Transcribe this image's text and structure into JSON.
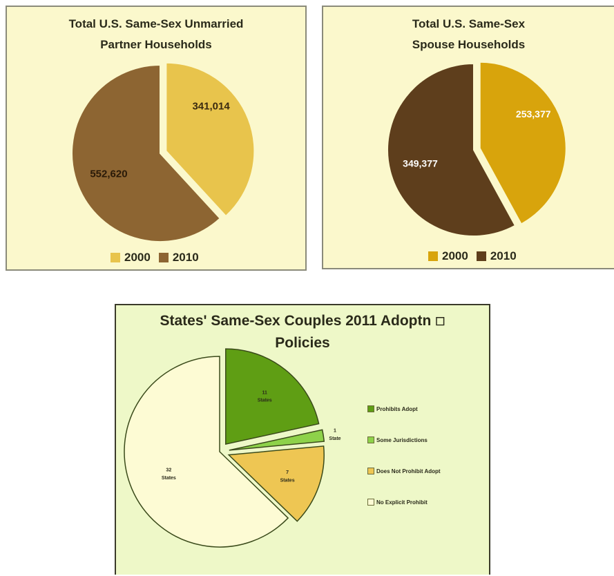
{
  "chart_data": [
    {
      "type": "pie",
      "title_lines": [
        "Total U.S. Same-Sex Unmarried",
        "Partner  Households"
      ],
      "categories": [
        "2000",
        "2010"
      ],
      "values": [
        341014,
        552620
      ],
      "labels": [
        "341,014",
        "552,620"
      ],
      "colors": [
        "#e8c44c",
        "#8d6532"
      ],
      "label_colors": [
        "#3a2a10",
        "#2a1a08"
      ],
      "exploded": [
        true,
        false
      ],
      "legend": "bottom"
    },
    {
      "type": "pie",
      "title_lines": [
        "Total U.S. Same-Sex",
        "Spouse  Households"
      ],
      "categories": [
        "2000",
        "2010"
      ],
      "values": [
        253377,
        349377
      ],
      "labels": [
        "253,377",
        "349,377"
      ],
      "colors": [
        "#d8a40c",
        "#5e3e1c"
      ],
      "label_colors": [
        "#ffffff",
        "#ffffff"
      ],
      "exploded": [
        true,
        false
      ],
      "legend": "bottom"
    },
    {
      "type": "pie",
      "title_lines": [
        "States' Same-Sex Couples 2011 Adoptn ",
        "Policies"
      ],
      "title_glyph": "☐",
      "categories": [
        "Prohibits Adopt",
        "Some Jurisdictions",
        "Does Not Prohibit Adopt",
        "No Explicit Prohibit"
      ],
      "values": [
        11,
        1,
        7,
        32
      ],
      "labels": [
        [
          "11",
          "States"
        ],
        [
          "1",
          "State"
        ],
        [
          "7",
          "States"
        ],
        [
          "32",
          "States"
        ]
      ],
      "colors": [
        "#5f9e14",
        "#8ed24a",
        "#eec653",
        "#fdfbd4"
      ],
      "exploded": [
        true,
        true,
        true,
        false
      ],
      "legend": "right"
    }
  ]
}
